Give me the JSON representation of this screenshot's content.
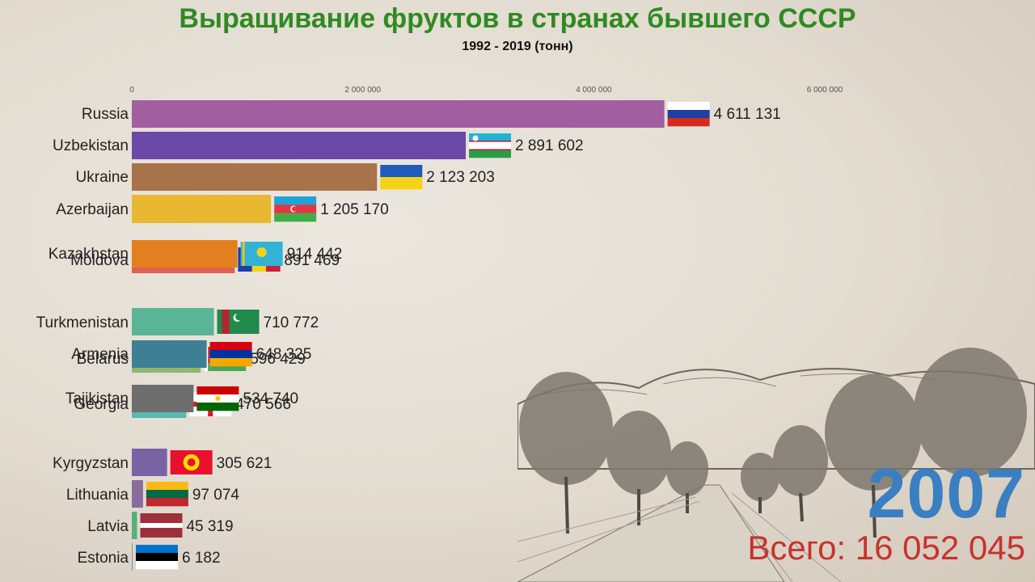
{
  "title": "Выращивание фруктов в странах бывшего СССР",
  "subtitle": "1992 - 2019 (тонн)",
  "year": "2007",
  "total_label": "Всего: 16 052 045",
  "chart_data": {
    "type": "bar",
    "orientation": "horizontal",
    "axis_ticks": [
      {
        "value": 0,
        "label": "0"
      },
      {
        "value": 2000000,
        "label": "2 000 000"
      },
      {
        "value": 4000000,
        "label": "4 000 000"
      },
      {
        "value": 6000000,
        "label": "6 000 000"
      }
    ],
    "xlim": [
      0,
      6000000
    ],
    "bars": [
      {
        "name": "Russia",
        "value": 4611131,
        "label": "4 611 131",
        "color": "#a15ea0",
        "flag": "russia-flag"
      },
      {
        "name": "Uzbekistan",
        "value": 2891602,
        "label": "2 891 602",
        "color": "#6a4aa6",
        "flag": "uzbekistan-flag"
      },
      {
        "name": "Ukraine",
        "value": 2123203,
        "label": "2 123 203",
        "color": "#a8734b",
        "flag": "ukraine-flag"
      },
      {
        "name": "Azerbaijan",
        "value": 1205170,
        "label": "1 205 170",
        "color": "#e8b830",
        "flag": "azerbaijan-flag"
      },
      {
        "name": "Moldova",
        "value": 891469,
        "label": "891 469",
        "color": "#df6054",
        "flag": "moldova-flag"
      },
      {
        "name": "Kazakhstan",
        "value": 914442,
        "label": "914 442",
        "color": "#e2801f",
        "flag": "kazakhstan-flag"
      },
      {
        "name": "Turkmenistan",
        "value": 710772,
        "label": "710 772",
        "color": "#5ab597",
        "flag": "turkmenistan-flag"
      },
      {
        "name": "Belarus",
        "value": 596429,
        "label": "596 429",
        "color": "#8fb86a",
        "flag": "belarus-flag"
      },
      {
        "name": "Armenia",
        "value": 648325,
        "label": "648 325",
        "color": "#3f7f96",
        "flag": "armenia-flag"
      },
      {
        "name": "Georgia",
        "value": 470566,
        "label": "470 566",
        "color": "#57b8b0",
        "flag": "georgia-flag"
      },
      {
        "name": "Tajikistan",
        "value": 534740,
        "label": "534 740",
        "color": "#6e6e6e",
        "flag": "tajikistan-flag"
      },
      {
        "name": "Kyrgyzstan",
        "value": 305621,
        "label": "305 621",
        "color": "#7a63a5",
        "flag": "kyrgyzstan-flag"
      },
      {
        "name": "Lithuania",
        "value": 97074,
        "label": "97 074",
        "color": "#8a6b9e",
        "flag": "lithuania-flag"
      },
      {
        "name": "Latvia",
        "value": 45319,
        "label": "45 319",
        "color": "#55b07a",
        "flag": "latvia-flag"
      },
      {
        "name": "Estonia",
        "value": 6182,
        "label": "6 182",
        "color": "#7a8fb3",
        "flag": "estonia-flag"
      }
    ]
  }
}
